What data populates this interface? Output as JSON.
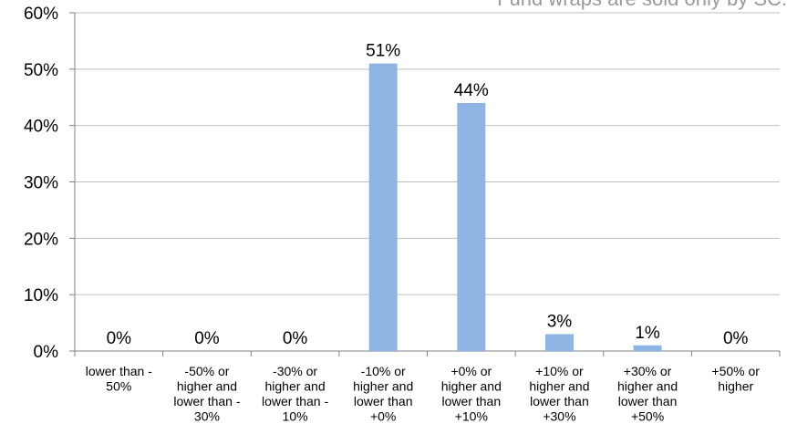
{
  "chart_data": {
    "type": "bar",
    "title": "",
    "note": "Fund wraps are sold only by SC.",
    "xlabel": "",
    "ylabel": "",
    "ylim": [
      0,
      60
    ],
    "yticks": [
      "0%",
      "10%",
      "20%",
      "30%",
      "40%",
      "50%",
      "60%"
    ],
    "grid": true,
    "bar_color": "#8EB4E3",
    "categories": [
      [
        "lower than -",
        "50%"
      ],
      [
        "-50% or",
        "higher and",
        "lower than -",
        "30%"
      ],
      [
        "-30% or",
        "higher and",
        "lower than -",
        "10%"
      ],
      [
        "-10% or",
        "higher and",
        "lower than",
        "+0%"
      ],
      [
        "+0% or",
        "higher and",
        "lower than",
        "+10%"
      ],
      [
        "+10% or",
        "higher and",
        "lower than",
        "+30%"
      ],
      [
        "+30% or",
        "higher and",
        "lower than",
        "+50%"
      ],
      [
        "+50% or",
        "higher"
      ]
    ],
    "values": [
      0,
      0,
      0,
      51,
      44,
      3,
      1,
      0
    ],
    "value_labels": [
      "0%",
      "0%",
      "0%",
      "51%",
      "44%",
      "3%",
      "1%",
      "0%"
    ]
  }
}
